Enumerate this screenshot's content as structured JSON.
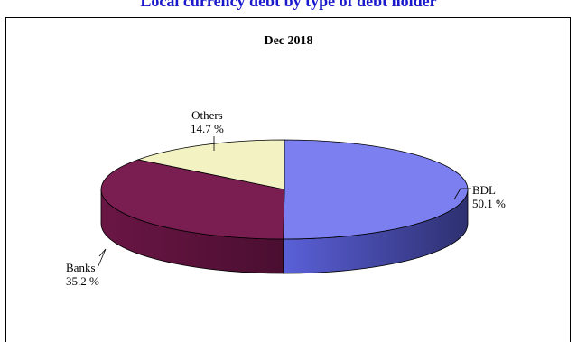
{
  "title": "Local currency debt by type of debt holder",
  "chart_data": {
    "type": "pie",
    "title": "Dec 2018",
    "labels": [
      "BDL",
      "Banks",
      "Others"
    ],
    "values": [
      50.1,
      35.2,
      14.7
    ],
    "value_labels": [
      "50.1  %",
      "35.2 %",
      "14.7 %"
    ],
    "colors": {
      "BDL": "#7b7ff0",
      "Banks": "#7a1e52",
      "Others": "#f2f2c2"
    },
    "style": "3d-pie"
  }
}
